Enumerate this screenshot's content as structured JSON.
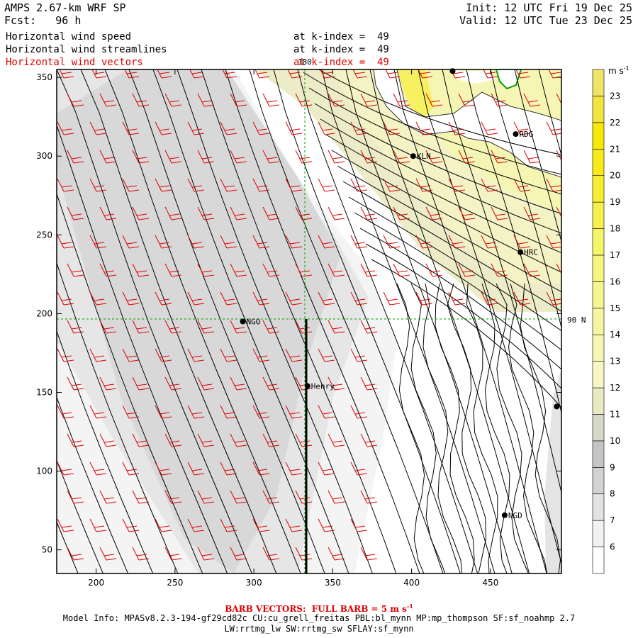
{
  "header": {
    "title": "AMPS 2.67-km WRF SP",
    "forecast": "Fcst:   96 h",
    "init": "Init: 12 UTC Fri 19 Dec 25",
    "valid": "Valid: 12 UTC Tue 23 Dec 25",
    "layers": [
      {
        "name": "Horizontal wind speed",
        "level": "at k-index =  49",
        "color": "#000000"
      },
      {
        "name": "Horizontal wind streamlines",
        "level": "at k-index =  49",
        "color": "#000000"
      },
      {
        "name": "Horizontal wind vectors",
        "level": "at k-index =  49",
        "color": "#e00000"
      }
    ]
  },
  "axes": {
    "x_ticks": [
      "200",
      "250",
      "300",
      "350",
      "400",
      "450"
    ],
    "y_ticks": [
      "50",
      "100",
      "150",
      "200",
      "250",
      "300",
      "350"
    ],
    "xlim": [
      175,
      495
    ],
    "ylim": [
      35,
      355
    ],
    "meridian_label": "180",
    "parallel_label": "90 N"
  },
  "colorbar": {
    "unit": "m s",
    "unit_exp": "-1",
    "levels": [
      "6",
      "7",
      "8",
      "9",
      "10",
      "11",
      "12",
      "13",
      "14",
      "15",
      "16",
      "17",
      "18",
      "19",
      "20",
      "21",
      "22",
      "23"
    ],
    "colors": [
      "#ffffff",
      "#f2f2f2",
      "#e2e2e2",
      "#d2d2d2",
      "#c5c5c5",
      "#d8d8c8",
      "#eaeac2",
      "#f7f7c6",
      "#f7f7b5",
      "#f5f5a2",
      "#f5f592",
      "#f5f580",
      "#f5f56a",
      "#f5f04d",
      "#f7ee30",
      "#f8ea18",
      "#f5e806",
      "#f2e43c",
      "#f0e466"
    ]
  },
  "stations": [
    {
      "label": "NGO",
      "x": 293,
      "y": 195
    },
    {
      "label": "Henry",
      "x": 334,
      "y": 154
    },
    {
      "label": "KLN",
      "x": 401,
      "y": 300
    },
    {
      "label": "RDG",
      "x": 466,
      "y": 314
    },
    {
      "label": "HRC",
      "x": 469,
      "y": 239
    },
    {
      "label": "NGD",
      "x": 459,
      "y": 72
    },
    {
      "label": "",
      "x": 426,
      "y": 354
    },
    {
      "label": "",
      "x": 492,
      "y": 141
    }
  ],
  "footer": {
    "barb_note": "BARB VECTORS:  FULL BARB = 5 m s",
    "barb_note_exp": "-1",
    "model_info_1": "Model Info: MPASv8.2.3-194-gf29cd82c CU:cu_grell_freitas PBL:bl_mynn MP:mp_thompson SF:sf_noahmp 2.7",
    "model_info_2": "LW:rrtmg_lw SW:rrtmg_sw SFLAY:sf_mynn"
  }
}
